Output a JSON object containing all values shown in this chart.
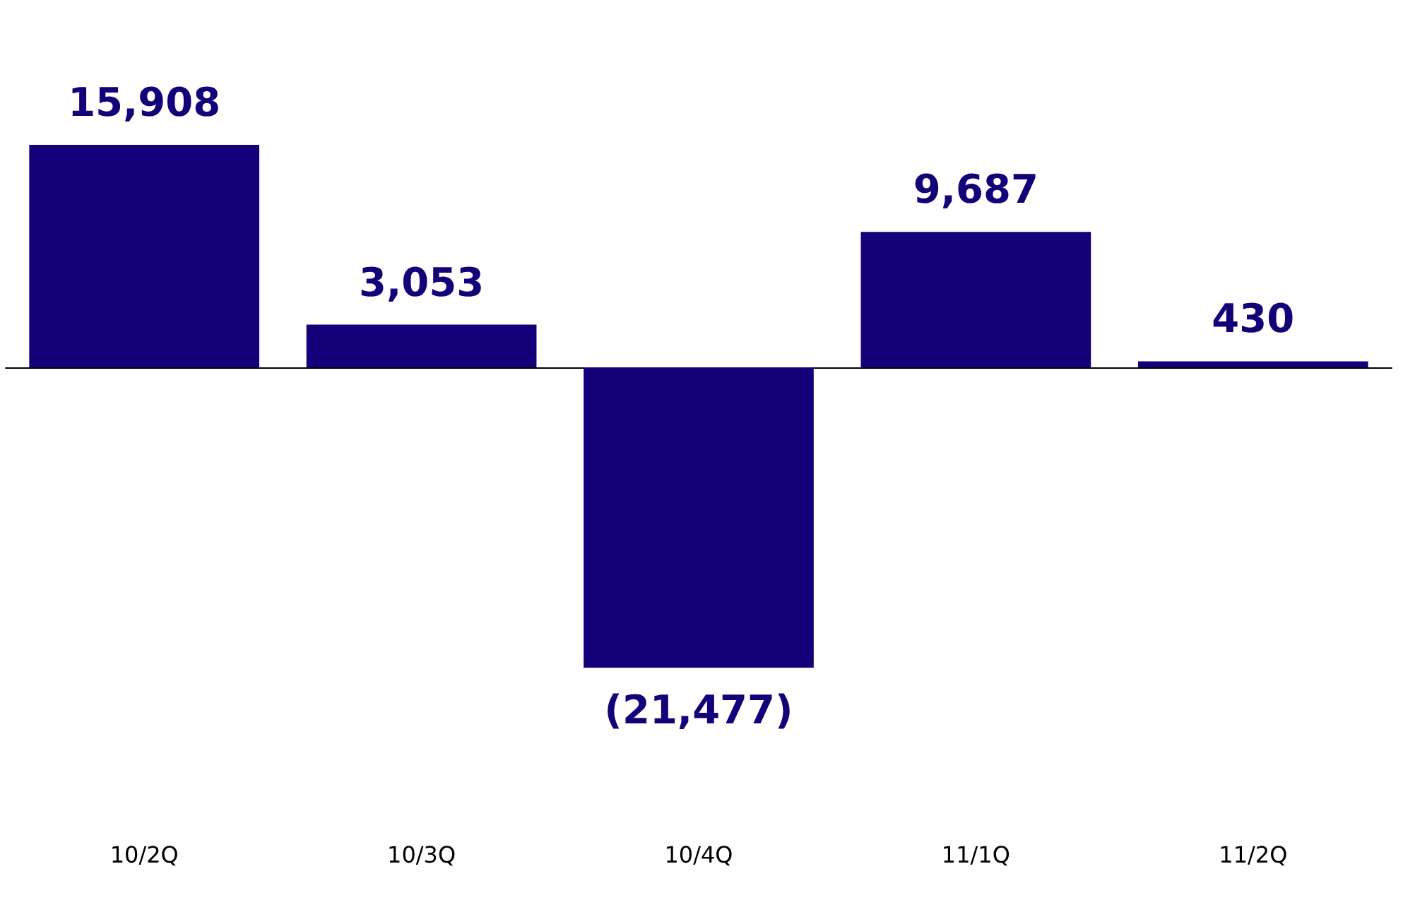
{
  "chart_data": {
    "type": "bar",
    "categories": [
      "10/2Q",
      "10/3Q",
      "10/4Q",
      "11/1Q",
      "11/2Q"
    ],
    "values": [
      15908,
      3053,
      -21477,
      9687,
      430
    ],
    "value_labels": [
      "15,908",
      "3,053",
      "(21,477)",
      "9,687",
      "430"
    ],
    "color": "#140078",
    "tick_labels": "x"
  }
}
